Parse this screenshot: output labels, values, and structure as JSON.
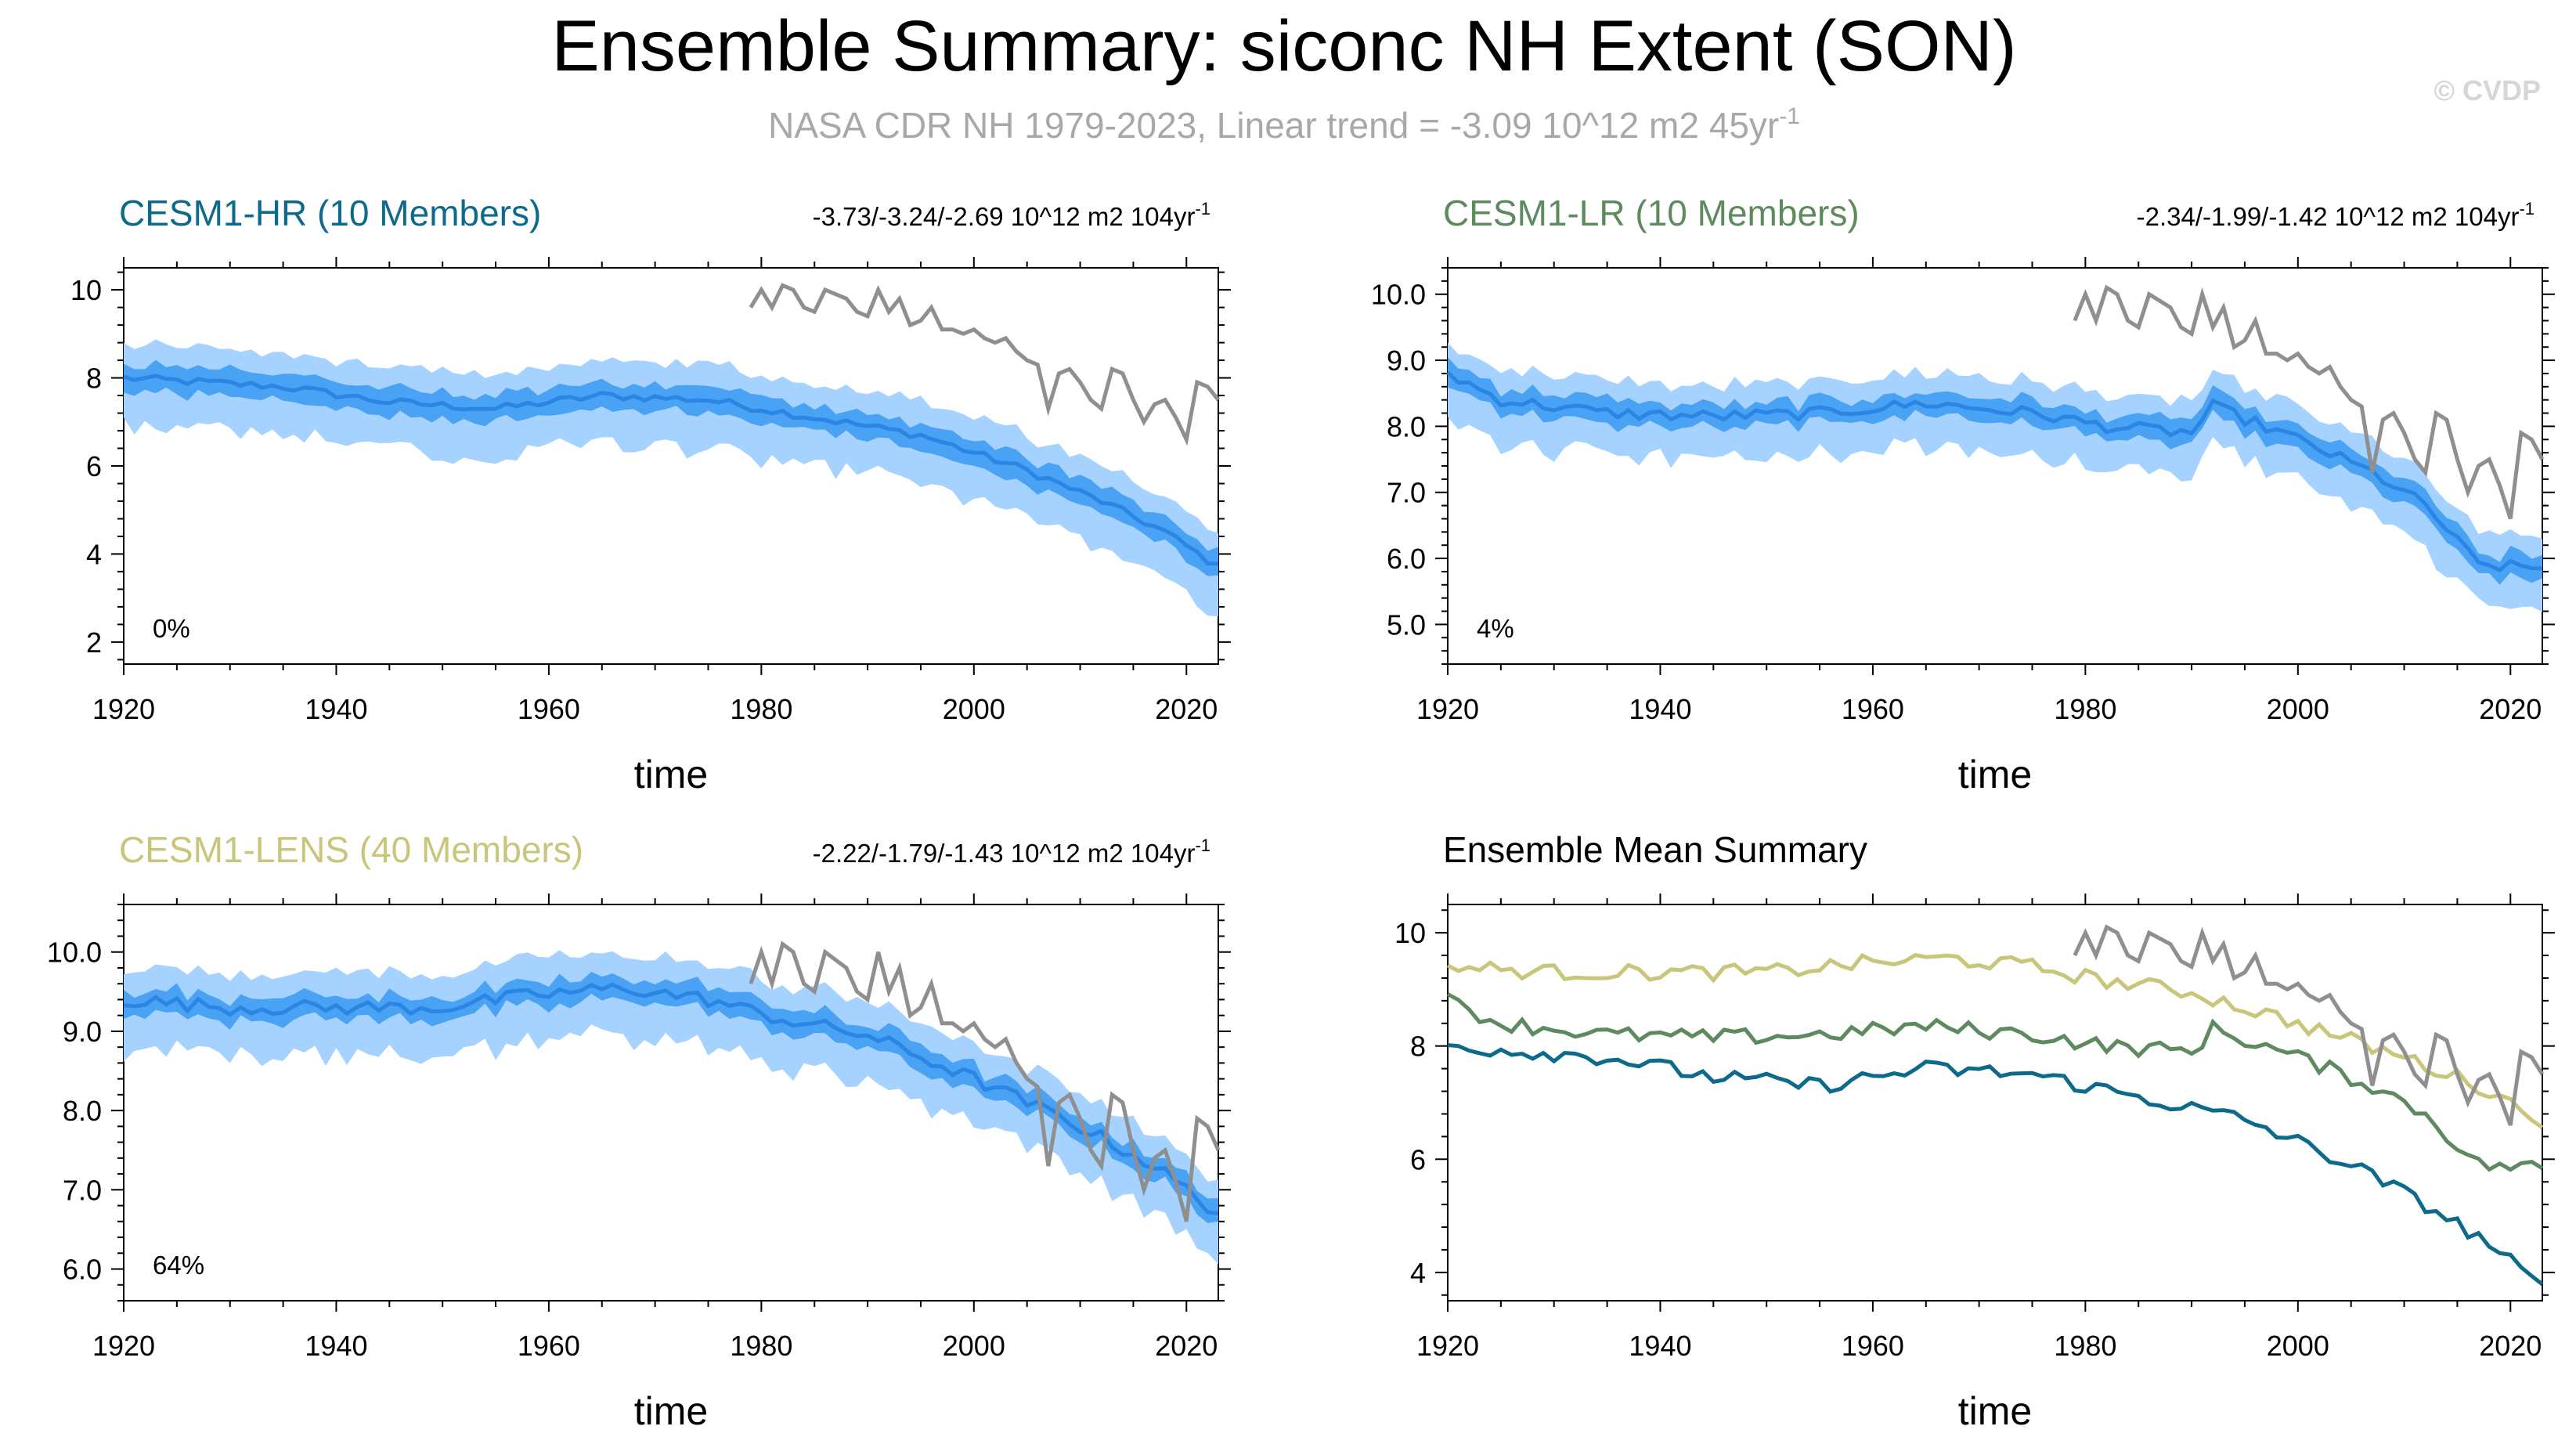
{
  "title": "Ensemble Summary: siconc NH Extent (SON)",
  "subtitle": {
    "text": "NASA CDR NH 1979-2023, Linear trend = -3.09 10^12 m2 45yr",
    "exponent": "-1"
  },
  "watermark": "© CVDP",
  "colors": {
    "hr": "#0e6a8a",
    "lr": "#5e8a5f",
    "lens": "#c9c57a",
    "obs": "#8f8f8f",
    "band_outer": "#a6d2ff",
    "band_inner": "#4aa2f4",
    "mean_line": "#2b86e3",
    "subtitle": "#a8a8a8",
    "watermark": "#d6d6d6"
  },
  "chart_data": [
    {
      "id": "hr",
      "type": "area",
      "title": "CESM1-HR (10 Members)",
      "trend": "-3.73/-3.24/-2.69 10^12 m2 104yr",
      "trend_exp": "-1",
      "rank": "0%",
      "xlabel": "time",
      "xlim": [
        1920,
        2023
      ],
      "ylim": [
        1.5,
        10.5
      ],
      "yticks": [
        2,
        4,
        6,
        8,
        10
      ],
      "ytick_labels": [
        "2",
        "4",
        "6",
        "8",
        "10"
      ],
      "xticks": [
        1920,
        1940,
        1960,
        1980,
        2000,
        2020
      ],
      "xtick_labels": [
        "1920",
        "1940",
        "1960",
        "1980",
        "2000",
        "2020"
      ],
      "mean_anchors": [
        [
          1920,
          8.0
        ],
        [
          1935,
          7.8
        ],
        [
          1945,
          7.45
        ],
        [
          1955,
          7.3
        ],
        [
          1965,
          7.6
        ],
        [
          1975,
          7.5
        ],
        [
          1985,
          7.1
        ],
        [
          1995,
          6.7
        ],
        [
          2005,
          5.9
        ],
        [
          2012,
          5.2
        ],
        [
          2018,
          4.5
        ],
        [
          2023,
          3.7
        ]
      ],
      "spread": [
        0.5,
        1.0
      ],
      "obs_years": [
        1979,
        1980,
        1981,
        1982,
        1983,
        1984,
        1985,
        1986,
        1987,
        1988,
        1989,
        1990,
        1991,
        1992,
        1993,
        1994,
        1995,
        1996,
        1997,
        1998,
        1999,
        2000,
        2001,
        2002,
        2003,
        2004,
        2005,
        2006,
        2007,
        2008,
        2009,
        2010,
        2011,
        2012,
        2013,
        2014,
        2015,
        2016,
        2017,
        2018,
        2019,
        2020,
        2021,
        2022,
        2023
      ],
      "obs": [
        9.6,
        10.0,
        9.6,
        10.1,
        10.0,
        9.6,
        9.5,
        10.0,
        9.9,
        9.8,
        9.5,
        9.4,
        10.0,
        9.5,
        9.8,
        9.2,
        9.3,
        9.6,
        9.1,
        9.1,
        9.0,
        9.1,
        8.9,
        8.8,
        8.9,
        8.6,
        8.4,
        8.3,
        7.3,
        8.1,
        8.2,
        7.9,
        7.5,
        7.3,
        8.2,
        8.1,
        7.5,
        7.0,
        7.4,
        7.5,
        7.1,
        6.6,
        7.9,
        7.8,
        7.5
      ]
    },
    {
      "id": "lr",
      "type": "area",
      "title": "CESM1-LR (10 Members)",
      "trend": "-2.34/-1.99/-1.42 10^12 m2 104yr",
      "trend_exp": "-1",
      "rank": "4%",
      "xlabel": "time",
      "xlim": [
        1920,
        2023
      ],
      "ylim": [
        4.4,
        10.4
      ],
      "yticks": [
        5,
        6,
        7,
        8,
        9,
        10
      ],
      "ytick_labels": [
        "5.0",
        "6.0",
        "7.0",
        "8.0",
        "9.0",
        "10.0"
      ],
      "xticks": [
        1920,
        1940,
        1960,
        1980,
        2000,
        2020
      ],
      "xtick_labels": [
        "1920",
        "1940",
        "1960",
        "1980",
        "2000",
        "2020"
      ],
      "mean_anchors": [
        [
          1920,
          8.8
        ],
        [
          1925,
          8.4
        ],
        [
          1935,
          8.2
        ],
        [
          1945,
          8.15
        ],
        [
          1955,
          8.2
        ],
        [
          1965,
          8.35
        ],
        [
          1975,
          8.2
        ],
        [
          1982,
          8.0
        ],
        [
          1990,
          7.9
        ],
        [
          1992,
          8.3
        ],
        [
          2000,
          7.8
        ],
        [
          2007,
          7.3
        ],
        [
          2012,
          6.8
        ],
        [
          2017,
          5.9
        ],
        [
          2023,
          5.85
        ]
      ],
      "spread": [
        0.3,
        0.6
      ],
      "obs_years": [
        1979,
        1980,
        1981,
        1982,
        1983,
        1984,
        1985,
        1986,
        1987,
        1988,
        1989,
        1990,
        1991,
        1992,
        1993,
        1994,
        1995,
        1996,
        1997,
        1998,
        1999,
        2000,
        2001,
        2002,
        2003,
        2004,
        2005,
        2006,
        2007,
        2008,
        2009,
        2010,
        2011,
        2012,
        2013,
        2014,
        2015,
        2016,
        2017,
        2018,
        2019,
        2020,
        2021,
        2022,
        2023
      ],
      "obs": [
        9.6,
        10.0,
        9.6,
        10.1,
        10.0,
        9.6,
        9.5,
        10.0,
        9.9,
        9.8,
        9.5,
        9.4,
        10.0,
        9.5,
        9.8,
        9.2,
        9.3,
        9.6,
        9.1,
        9.1,
        9.0,
        9.1,
        8.9,
        8.8,
        8.9,
        8.6,
        8.4,
        8.3,
        7.3,
        8.1,
        8.2,
        7.9,
        7.5,
        7.3,
        8.2,
        8.1,
        7.5,
        7.0,
        7.4,
        7.5,
        7.1,
        6.6,
        7.9,
        7.8,
        7.5
      ]
    },
    {
      "id": "lens",
      "type": "area",
      "title": "CESM1-LENS (40 Members)",
      "trend": "-2.22/-1.79/-1.43 10^12 m2 104yr",
      "trend_exp": "-1",
      "rank": "64%",
      "xlabel": "time",
      "xlim": [
        1920,
        2023
      ],
      "ylim": [
        5.6,
        10.6
      ],
      "yticks": [
        6,
        7,
        8,
        9,
        10
      ],
      "ytick_labels": [
        "6.0",
        "7.0",
        "8.0",
        "9.0",
        "10.0"
      ],
      "xticks": [
        1920,
        1940,
        1960,
        1980,
        2000,
        2020
      ],
      "xtick_labels": [
        "1920",
        "1940",
        "1960",
        "1980",
        "2000",
        "2020"
      ],
      "mean_anchors": [
        [
          1920,
          9.4
        ],
        [
          1930,
          9.3
        ],
        [
          1940,
          9.3
        ],
        [
          1950,
          9.3
        ],
        [
          1958,
          9.45
        ],
        [
          1967,
          9.55
        ],
        [
          1975,
          9.4
        ],
        [
          1982,
          9.15
        ],
        [
          1990,
          8.95
        ],
        [
          2000,
          8.4
        ],
        [
          2010,
          7.8
        ],
        [
          2017,
          7.3
        ],
        [
          2023,
          6.7
        ]
      ],
      "spread": [
        0.25,
        0.55
      ],
      "obs_years": [
        1979,
        1980,
        1981,
        1982,
        1983,
        1984,
        1985,
        1986,
        1987,
        1988,
        1989,
        1990,
        1991,
        1992,
        1993,
        1994,
        1995,
        1996,
        1997,
        1998,
        1999,
        2000,
        2001,
        2002,
        2003,
        2004,
        2005,
        2006,
        2007,
        2008,
        2009,
        2010,
        2011,
        2012,
        2013,
        2014,
        2015,
        2016,
        2017,
        2018,
        2019,
        2020,
        2021,
        2022,
        2023
      ],
      "obs": [
        9.6,
        10.0,
        9.6,
        10.1,
        10.0,
        9.6,
        9.5,
        10.0,
        9.9,
        9.8,
        9.5,
        9.4,
        10.0,
        9.5,
        9.8,
        9.2,
        9.3,
        9.6,
        9.1,
        9.1,
        9.0,
        9.1,
        8.9,
        8.8,
        8.9,
        8.6,
        8.4,
        8.3,
        7.3,
        8.1,
        8.2,
        7.9,
        7.5,
        7.3,
        8.2,
        8.1,
        7.5,
        7.0,
        7.4,
        7.5,
        7.1,
        6.6,
        7.9,
        7.8,
        7.5
      ]
    },
    {
      "id": "summary",
      "type": "line",
      "title": "Ensemble Mean Summary",
      "xlabel": "time",
      "xlim": [
        1920,
        2023
      ],
      "ylim": [
        3.5,
        10.5
      ],
      "yticks": [
        4,
        6,
        8,
        10
      ],
      "ytick_labels": [
        "4",
        "6",
        "8",
        "10"
      ],
      "xticks": [
        1920,
        1940,
        1960,
        1980,
        2000,
        2020
      ],
      "xtick_labels": [
        "1920",
        "1940",
        "1960",
        "1980",
        "2000",
        "2020"
      ],
      "series": [
        {
          "name": "CESM1-LENS (40 Members)",
          "color_key": "lens",
          "anchors": [
            [
              1920,
              9.4
            ],
            [
              1930,
              9.3
            ],
            [
              1940,
              9.3
            ],
            [
              1950,
              9.3
            ],
            [
              1958,
              9.45
            ],
            [
              1967,
              9.55
            ],
            [
              1975,
              9.4
            ],
            [
              1982,
              9.15
            ],
            [
              1990,
              8.95
            ],
            [
              2000,
              8.4
            ],
            [
              2010,
              7.8
            ],
            [
              2017,
              7.3
            ],
            [
              2023,
              6.7
            ]
          ]
        },
        {
          "name": "CESM1-LR (10 Members)",
          "color_key": "lr",
          "anchors": [
            [
              1920,
              8.8
            ],
            [
              1925,
              8.4
            ],
            [
              1935,
              8.2
            ],
            [
              1945,
              8.15
            ],
            [
              1955,
              8.2
            ],
            [
              1965,
              8.35
            ],
            [
              1975,
              8.2
            ],
            [
              1982,
              8.0
            ],
            [
              1990,
              7.9
            ],
            [
              1992,
              8.3
            ],
            [
              2000,
              7.8
            ],
            [
              2007,
              7.3
            ],
            [
              2012,
              6.8
            ],
            [
              2017,
              5.9
            ],
            [
              2023,
              5.85
            ]
          ]
        },
        {
          "name": "CESM1-HR (10 Members)",
          "color_key": "hr",
          "anchors": [
            [
              1920,
              8.0
            ],
            [
              1935,
              7.8
            ],
            [
              1945,
              7.45
            ],
            [
              1955,
              7.3
            ],
            [
              1965,
              7.6
            ],
            [
              1975,
              7.5
            ],
            [
              1985,
              7.1
            ],
            [
              1995,
              6.7
            ],
            [
              2005,
              5.9
            ],
            [
              2012,
              5.2
            ],
            [
              2018,
              4.5
            ],
            [
              2023,
              3.7
            ]
          ]
        }
      ],
      "obs_years": [
        1979,
        1980,
        1981,
        1982,
        1983,
        1984,
        1985,
        1986,
        1987,
        1988,
        1989,
        1990,
        1991,
        1992,
        1993,
        1994,
        1995,
        1996,
        1997,
        1998,
        1999,
        2000,
        2001,
        2002,
        2003,
        2004,
        2005,
        2006,
        2007,
        2008,
        2009,
        2010,
        2011,
        2012,
        2013,
        2014,
        2015,
        2016,
        2017,
        2018,
        2019,
        2020,
        2021,
        2022,
        2023
      ],
      "obs": [
        9.6,
        10.0,
        9.6,
        10.1,
        10.0,
        9.6,
        9.5,
        10.0,
        9.9,
        9.8,
        9.5,
        9.4,
        10.0,
        9.5,
        9.8,
        9.2,
        9.3,
        9.6,
        9.1,
        9.1,
        9.0,
        9.1,
        8.9,
        8.8,
        8.9,
        8.6,
        8.4,
        8.3,
        7.3,
        8.1,
        8.2,
        7.9,
        7.5,
        7.3,
        8.2,
        8.1,
        7.5,
        7.0,
        7.4,
        7.5,
        7.1,
        6.6,
        7.9,
        7.8,
        7.5
      ]
    }
  ]
}
